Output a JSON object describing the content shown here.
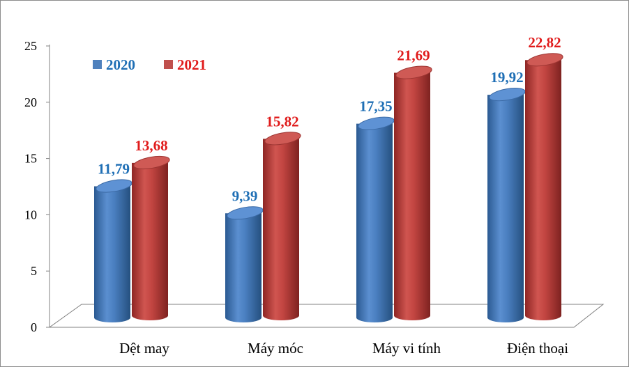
{
  "chart_data": {
    "type": "bar",
    "categories": [
      "Dệt may",
      "Máy móc",
      "Máy vi tính",
      "Điện thoại"
    ],
    "series": [
      {
        "name": "2020",
        "values": [
          11.79,
          9.39,
          17.35,
          19.92
        ],
        "value_labels": [
          "11,79",
          "9,39",
          "17,35",
          "19,92"
        ],
        "color": "#4f81bd",
        "label_color": "#1f6fb5"
      },
      {
        "name": "2021",
        "values": [
          13.68,
          15.82,
          21.69,
          22.82
        ],
        "value_labels": [
          "13,68",
          "15,82",
          "21,69",
          "22,82"
        ],
        "color": "#c0504d",
        "label_color": "#e01b1b"
      }
    ],
    "y_ticks": [
      0,
      5,
      10,
      15,
      20,
      25
    ],
    "ylim": [
      0,
      25
    ],
    "title": "",
    "xlabel": "",
    "ylabel": "",
    "legend_position": "top-left",
    "grid": false,
    "style": "3d-cylinder"
  }
}
